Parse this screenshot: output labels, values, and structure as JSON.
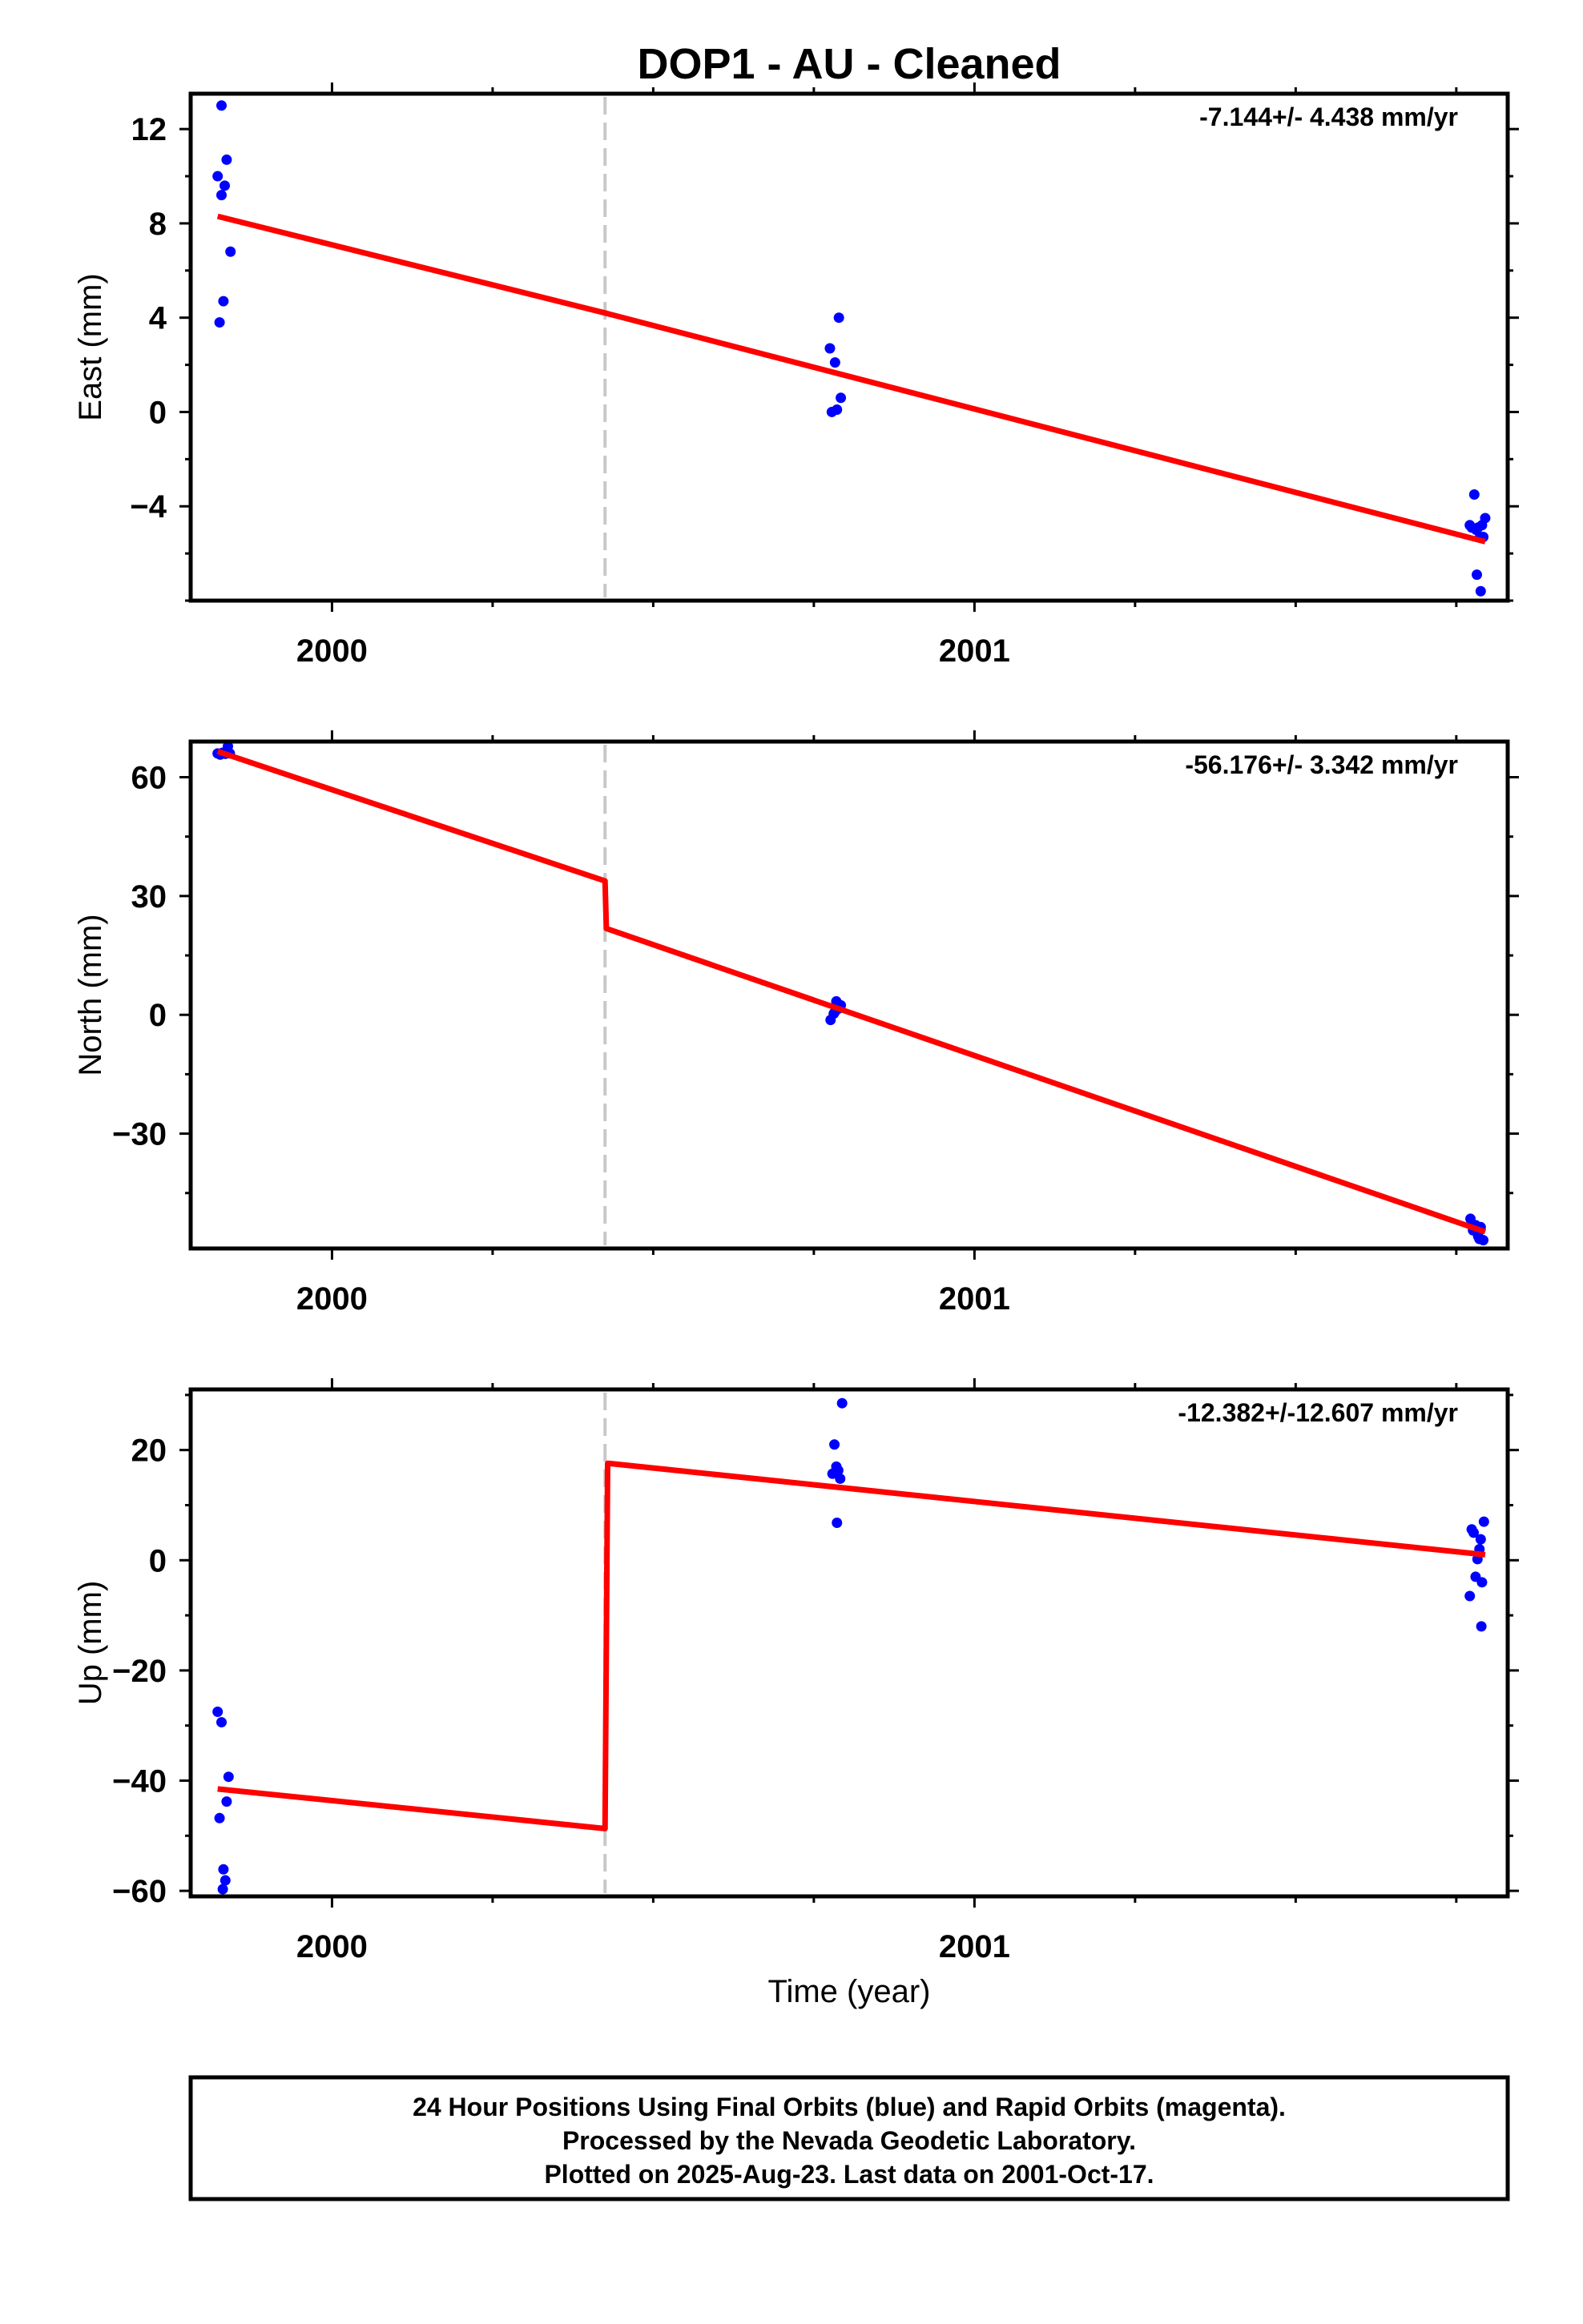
{
  "title": "DOP1  - AU - Cleaned",
  "colors": {
    "data_points": "#0000ff",
    "model_line": "#ff0000",
    "break_line": "#c8c8c8",
    "frame": "#000000"
  },
  "chart_data": [
    {
      "type": "scatter",
      "panel": "east",
      "ylabel": "East (mm)",
      "xlabel": "",
      "rate_label": "-7.144+/- 4.438 mm/yr",
      "xlim": [
        1999.78,
        2001.83
      ],
      "ylim": [
        -8,
        13.5
      ],
      "yticks": [
        {
          "value": 12,
          "label": "12"
        },
        {
          "value": 8,
          "label": "8"
        },
        {
          "value": 4,
          "label": "4"
        },
        {
          "value": 0,
          "label": "0"
        },
        {
          "value": -4,
          "label": "−4"
        }
      ],
      "yminor": [
        14,
        10,
        6,
        2,
        -2,
        -6,
        -8
      ],
      "xticks": [
        {
          "value": 2000,
          "label": "2000"
        },
        {
          "value": 2001,
          "label": "2001"
        }
      ],
      "xminor": [
        2000.25,
        2000.5,
        2000.75,
        2001.25,
        2001.5,
        2001.75
      ],
      "break_x": 2000.425,
      "points": [
        [
          1999.822,
          10.0
        ],
        [
          1999.828,
          13.0
        ],
        [
          1999.828,
          9.2
        ],
        [
          1999.833,
          9.6
        ],
        [
          1999.836,
          10.7
        ],
        [
          1999.842,
          6.8
        ],
        [
          1999.831,
          4.7
        ],
        [
          1999.825,
          3.8
        ],
        [
          2000.775,
          2.7
        ],
        [
          2000.783,
          2.1
        ],
        [
          2000.789,
          4.0
        ],
        [
          2000.792,
          0.6
        ],
        [
          2000.778,
          0.0
        ],
        [
          2000.786,
          0.1
        ],
        [
          2001.771,
          -4.8
        ],
        [
          2001.774,
          -4.9
        ],
        [
          2001.778,
          -3.5
        ],
        [
          2001.781,
          -5.0
        ],
        [
          2001.784,
          -4.9
        ],
        [
          2001.787,
          -5.3
        ],
        [
          2001.79,
          -4.8
        ],
        [
          2001.792,
          -5.3
        ],
        [
          2001.795,
          -4.5
        ],
        [
          2001.782,
          -6.9
        ],
        [
          2001.788,
          -7.6
        ]
      ],
      "model": [
        [
          1999.822,
          8.3
        ],
        [
          2000.425,
          4.2
        ],
        [
          2001.795,
          -5.5
        ]
      ]
    },
    {
      "type": "scatter",
      "panel": "north",
      "ylabel": "North (mm)",
      "xlabel": "",
      "rate_label": "-56.176+/- 3.342 mm/yr",
      "xlim": [
        1999.78,
        2001.83
      ],
      "ylim": [
        -59,
        69
      ],
      "yticks": [
        {
          "value": 60,
          "label": "60"
        },
        {
          "value": 30,
          "label": "30"
        },
        {
          "value": 0,
          "label": "0"
        },
        {
          "value": -30,
          "label": "−30"
        }
      ],
      "yminor": [
        45,
        15,
        -15,
        -45
      ],
      "xticks": [
        {
          "value": 2000,
          "label": "2000"
        },
        {
          "value": 2001,
          "label": "2001"
        }
      ],
      "xminor": [
        2000.25,
        2000.5,
        2000.75,
        2001.25,
        2001.5,
        2001.75
      ],
      "break_x": 2000.425,
      "points": [
        [
          1999.822,
          66.0
        ],
        [
          1999.826,
          65.7
        ],
        [
          1999.83,
          66.2
        ],
        [
          1999.834,
          65.9
        ],
        [
          1999.838,
          67.8
        ],
        [
          1999.841,
          66.0
        ],
        [
          2000.776,
          -1.3
        ],
        [
          2000.781,
          0.3
        ],
        [
          2000.785,
          3.4
        ],
        [
          2000.789,
          1.6
        ],
        [
          2000.792,
          2.4
        ],
        [
          2000.783,
          0.8
        ],
        [
          2001.772,
          -51.5
        ],
        [
          2001.776,
          -54.4
        ],
        [
          2001.78,
          -53.1
        ],
        [
          2001.784,
          -55.9
        ],
        [
          2001.788,
          -53.6
        ],
        [
          2001.792,
          -56.9
        ],
        [
          2001.786,
          -56.6
        ]
      ],
      "model": [
        [
          1999.822,
          66.5
        ],
        [
          2000.425,
          33.8
        ],
        [
          2000.427,
          21.8
        ],
        [
          2001.795,
          -54.8
        ]
      ]
    },
    {
      "type": "scatter",
      "panel": "up",
      "ylabel": "Up (mm)",
      "xlabel": "Time (year)",
      "rate_label": "-12.382+/-12.607 mm/yr",
      "xlim": [
        1999.78,
        2001.83
      ],
      "ylim": [
        -61,
        31
      ],
      "yticks": [
        {
          "value": 20,
          "label": "20"
        },
        {
          "value": 0,
          "label": "0"
        },
        {
          "value": -20,
          "label": "−20"
        },
        {
          "value": -40,
          "label": "−40"
        },
        {
          "value": -60,
          "label": "−60"
        }
      ],
      "yminor": [
        30,
        10,
        -10,
        -30,
        -50
      ],
      "xticks": [
        {
          "value": 2000,
          "label": "2000"
        },
        {
          "value": 2001,
          "label": "2001"
        }
      ],
      "xminor": [
        2000.25,
        2000.5,
        2000.75,
        2001.25,
        2001.5,
        2001.75
      ],
      "break_x": 2000.425,
      "points": [
        [
          1999.822,
          -27.5
        ],
        [
          1999.828,
          -29.4
        ],
        [
          1999.825,
          -46.8
        ],
        [
          1999.836,
          -43.8
        ],
        [
          1999.839,
          -39.3
        ],
        [
          1999.831,
          -56.1
        ],
        [
          1999.834,
          -58.1
        ],
        [
          1999.83,
          -59.7
        ],
        [
          2000.779,
          15.7
        ],
        [
          2000.782,
          21.0
        ],
        [
          2000.785,
          17.0
        ],
        [
          2000.788,
          16.3
        ],
        [
          2000.791,
          14.8
        ],
        [
          2000.794,
          28.5
        ],
        [
          2000.786,
          6.8
        ],
        [
          2001.771,
          -6.5
        ],
        [
          2001.774,
          5.6
        ],
        [
          2001.777,
          5.0
        ],
        [
          2001.78,
          -3.0
        ],
        [
          2001.783,
          0.2
        ],
        [
          2001.786,
          2.0
        ],
        [
          2001.788,
          3.8
        ],
        [
          2001.79,
          -4.0
        ],
        [
          2001.793,
          7.0
        ],
        [
          2001.789,
          -12.0
        ]
      ],
      "model": [
        [
          1999.822,
          -41.5
        ],
        [
          2000.425,
          -48.7
        ],
        [
          2000.429,
          17.6
        ],
        [
          2001.795,
          1.0
        ]
      ]
    }
  ],
  "footer": {
    "line1": "24 Hour Positions Using Final Orbits (blue) and Rapid Orbits (magenta).",
    "line2": "Processed by the Nevada Geodetic Laboratory.",
    "line3": "Plotted on 2025-Aug-23. Last data on 2001-Oct-17."
  }
}
